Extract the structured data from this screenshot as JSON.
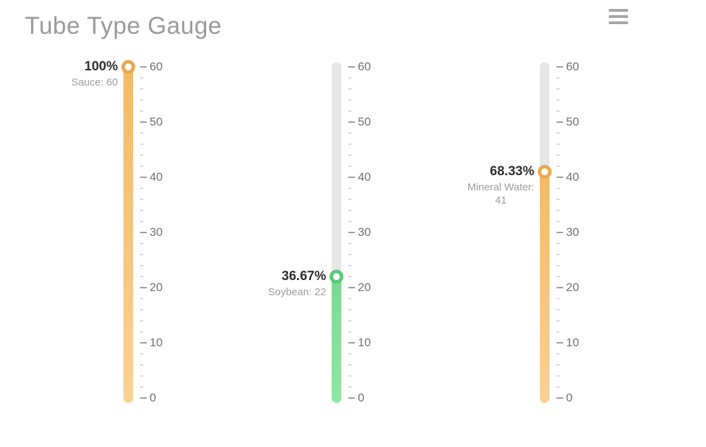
{
  "header": {
    "title": "Tube Type Gauge",
    "menu_icon": "hamburger-menu-icon"
  },
  "colors": {
    "title": "#9a9a9a",
    "burger": "#a6a6a6",
    "tube_background": "#e7e7e7",
    "tick_major": "#999999",
    "tick_minor": "#d6d6d6",
    "tick_label": "#6f6f6f",
    "percent_label": "#2e2e2e",
    "sub_label": "#9b9b9b",
    "orange_fill_top": "#f2bb66",
    "orange_fill_bottom": "#f9d095",
    "orange_ring": "#e9a94f",
    "green_fill_top": "#7bd893",
    "green_fill_bottom": "#90e6a5",
    "green_ring": "#58c976"
  },
  "chart_data": {
    "type": "gauge",
    "subtype": "tube-linear-gauge",
    "title": "Tube Type Gauge",
    "axis": {
      "min": 0,
      "max": 60,
      "major_tick_interval": 10,
      "minor_tick_interval": 2,
      "tick_labels": [
        "0",
        "10",
        "20",
        "30",
        "40",
        "50",
        "60"
      ],
      "labels_position": "right"
    },
    "gauges": [
      {
        "name": "Sauce",
        "value": 60,
        "percent": 100,
        "percent_label": "100%",
        "sub_label_lines": [
          "Sauce: 60"
        ],
        "fill_top": "#f2bb66",
        "fill_bottom": "#f9d095",
        "ring_color": "#e9a94f"
      },
      {
        "name": "Soybean",
        "value": 22,
        "percent": 36.67,
        "percent_label": "36.67%",
        "sub_label_lines": [
          "Soybean: 22"
        ],
        "fill_top": "#7bd893",
        "fill_bottom": "#90e6a5",
        "ring_color": "#58c976"
      },
      {
        "name": "Mineral Water",
        "value": 41,
        "percent": 68.33,
        "percent_label": "68.33%",
        "sub_label_lines": [
          "Mineral Water:",
          "41"
        ],
        "fill_top": "#f2bb66",
        "fill_bottom": "#f9d095",
        "ring_color": "#e9a94f"
      }
    ]
  }
}
